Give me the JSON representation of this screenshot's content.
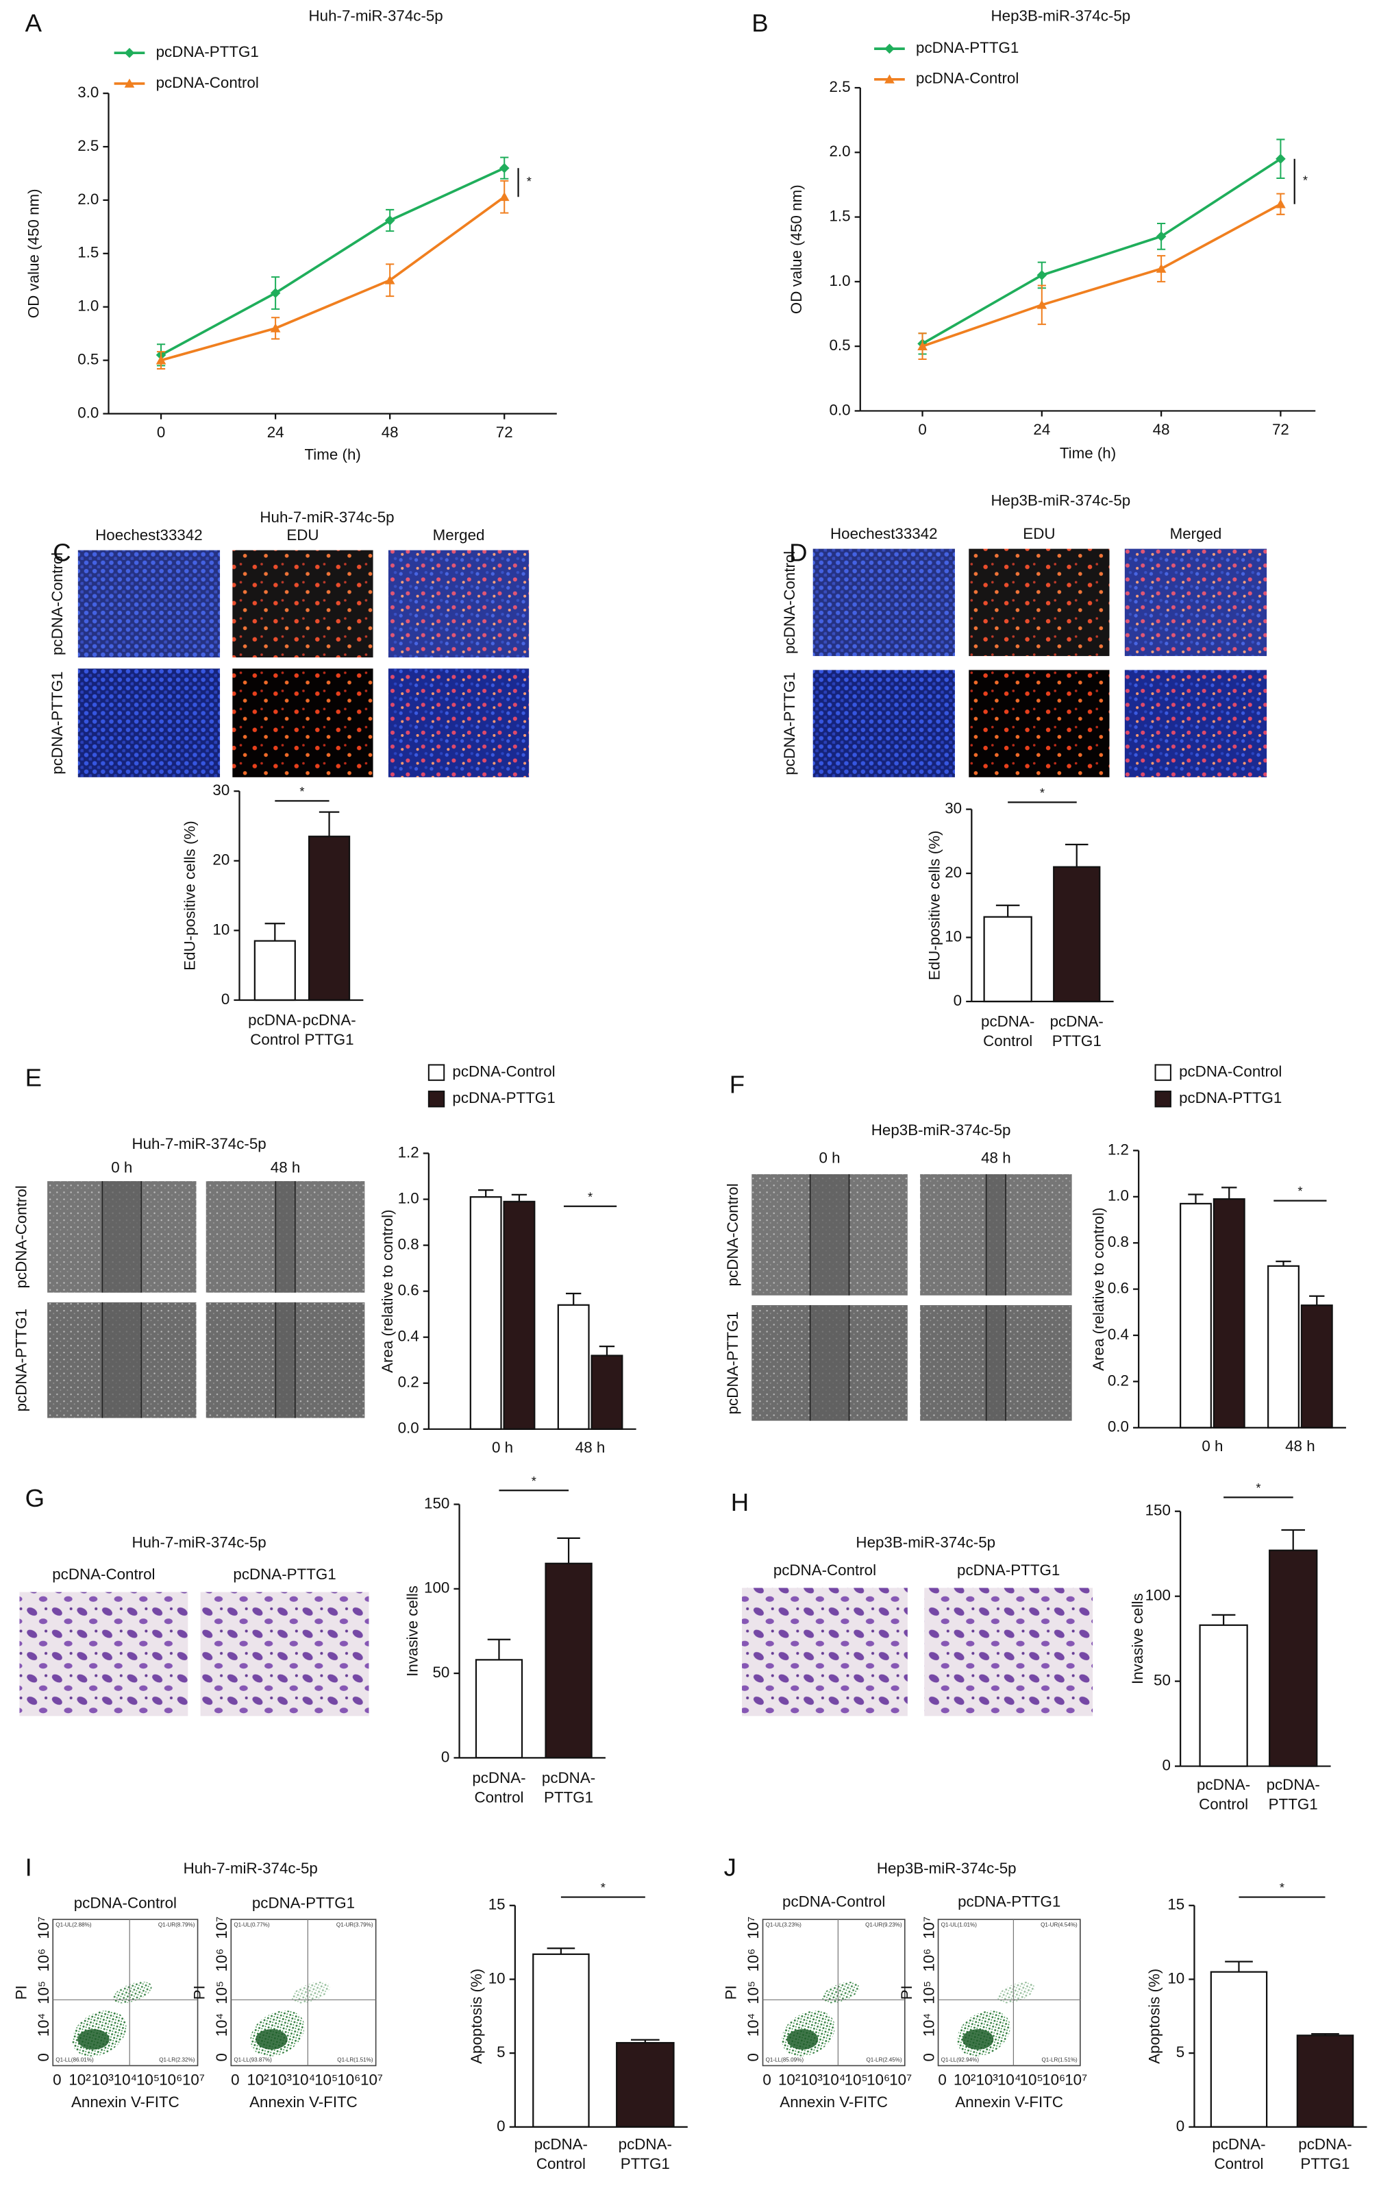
{
  "chart_data": [
    {
      "type": "line",
      "title": "Huh-7-miR-374c-5p",
      "x": [
        0,
        24,
        48,
        72
      ],
      "xlim": [
        -11,
        83
      ],
      "xticks": [
        0,
        24,
        48,
        72
      ],
      "xlabel": "Time (h)",
      "ylabel": "OD value (450 nm)",
      "ylim": [
        0,
        3
      ],
      "yticks": [
        {
          "value": 0,
          "label": "0.0"
        },
        0.5,
        {
          "value": 1,
          "label": "1.0"
        },
        1.5,
        {
          "value": 2,
          "label": "2.0"
        },
        2.5,
        {
          "value": 3,
          "label": "3.0"
        }
      ],
      "series": [
        {
          "name": "pcDNA-PTTG1",
          "color": "#1fae5b",
          "marker": "diamond",
          "values": [
            0.55,
            1.13,
            1.81,
            2.3
          ],
          "errors": [
            0.1,
            0.15,
            0.1,
            0.1
          ]
        },
        {
          "name": "pcDNA-Control",
          "color": "#f07f1f",
          "marker": "triangle",
          "values": [
            0.5,
            0.8,
            1.25,
            2.03
          ],
          "errors": [
            0.08,
            0.1,
            0.15,
            0.15
          ]
        }
      ],
      "annotations": [
        "*"
      ]
    },
    {
      "type": "line",
      "title": "Hep3B-miR-374c-5p",
      "x": [
        0,
        24,
        48,
        72
      ],
      "xlim": [
        -12.5,
        79
      ],
      "xticks": [
        0,
        24,
        48,
        72
      ],
      "xlabel": "Time (h)",
      "ylabel": "OD value (450 nm)",
      "ylim": [
        0,
        2.5
      ],
      "yticks": [
        {
          "value": 0,
          "label": "0.0"
        },
        0.5,
        {
          "value": 1,
          "label": "1.0"
        },
        1.5,
        {
          "value": 2,
          "label": "2.0"
        },
        2.5
      ],
      "series": [
        {
          "name": "pcDNA-PTTG1",
          "color": "#1fae5b",
          "marker": "diamond",
          "values": [
            0.52,
            1.05,
            1.35,
            1.95
          ],
          "errors": [
            0.08,
            0.1,
            0.1,
            0.15
          ]
        },
        {
          "name": "pcDNA-Control",
          "color": "#f07f1f",
          "marker": "triangle",
          "values": [
            0.5,
            0.82,
            1.1,
            1.6
          ],
          "errors": [
            0.1,
            0.15,
            0.1,
            0.08
          ]
        }
      ],
      "annotations": [
        "*"
      ]
    },
    {
      "type": "bar",
      "ylabel": "EdU-positive cells (%)",
      "categories": [
        "pcDNA-Control",
        "pcDNA-PTTG1"
      ],
      "values": [
        8.5,
        23.5
      ],
      "errors": [
        2.5,
        3.5
      ],
      "colors": [
        "#ffffff",
        "#2b1718"
      ],
      "ylim": [
        0,
        30
      ],
      "yticks": [
        0,
        10,
        20,
        30
      ],
      "annotations": [
        "*"
      ]
    },
    {
      "type": "bar",
      "ylabel": "EdU-positive cells (%)",
      "categories": [
        "pcDNA-Control",
        "pcDNA-PTTG1"
      ],
      "values": [
        13.2,
        21
      ],
      "errors": [
        1.8,
        3.5
      ],
      "colors": [
        "#ffffff",
        "#2b1718"
      ],
      "ylim": [
        0,
        30
      ],
      "yticks": [
        0,
        10,
        20,
        30
      ],
      "annotations": [
        "*"
      ]
    },
    {
      "type": "bar",
      "ylabel": "Area (relative to control)",
      "categories": [
        "0 h",
        "48 h"
      ],
      "series": [
        {
          "name": "pcDNA-Control",
          "color": "#ffffff",
          "values": [
            1.01,
            0.54
          ],
          "errors": [
            0.03,
            0.05
          ]
        },
        {
          "name": "pcDNA-PTTG1",
          "color": "#2b1718",
          "values": [
            0.99,
            0.32
          ],
          "errors": [
            0.03,
            0.04
          ]
        }
      ],
      "ylim": [
        0,
        1.2
      ],
      "yticks": [
        {
          "value": 0,
          "label": "0.0"
        },
        0.2,
        0.4,
        0.6,
        0.8,
        {
          "value": 1,
          "label": "1.0"
        },
        1.2
      ],
      "annotations": [
        "*"
      ]
    },
    {
      "type": "bar",
      "ylabel": "Area (relative to control)",
      "categories": [
        "0 h",
        "48 h"
      ],
      "series": [
        {
          "name": "pcDNA-Control",
          "color": "#ffffff",
          "values": [
            0.97,
            0.7
          ],
          "errors": [
            0.04,
            0.02
          ]
        },
        {
          "name": "pcDNA-PTTG1",
          "color": "#2b1718",
          "values": [
            0.99,
            0.53
          ],
          "errors": [
            0.05,
            0.04
          ]
        }
      ],
      "ylim": [
        0,
        1.2
      ],
      "yticks": [
        {
          "value": 0,
          "label": "0.0"
        },
        0.2,
        0.4,
        0.6,
        0.8,
        {
          "value": 1,
          "label": "1.0"
        },
        1.2
      ],
      "annotations": [
        "*"
      ]
    },
    {
      "type": "bar",
      "ylabel": "Invasive cells",
      "categories": [
        "pcDNA-Control",
        "pcDNA-PTTG1"
      ],
      "values": [
        58,
        115
      ],
      "errors": [
        12,
        15
      ],
      "colors": [
        "#ffffff",
        "#2b1718"
      ],
      "ylim": [
        0,
        150
      ],
      "yticks": [
        0,
        50,
        100,
        150
      ],
      "annotations": [
        "*"
      ]
    },
    {
      "type": "bar",
      "ylabel": "Invasive cells",
      "categories": [
        "pcDNA-Control",
        "pcDNA-PTTG1"
      ],
      "values": [
        83,
        127
      ],
      "errors": [
        6,
        12
      ],
      "colors": [
        "#ffffff",
        "#2b1718"
      ],
      "ylim": [
        0,
        150
      ],
      "yticks": [
        0,
        50,
        100,
        150
      ],
      "annotations": [
        "*"
      ]
    },
    {
      "type": "bar",
      "ylabel": "Apoptosis (%)",
      "categories": [
        "pcDNA-Control",
        "pcDNA-PTTG1"
      ],
      "values": [
        11.7,
        5.7
      ],
      "errors": [
        0.4,
        0.2
      ],
      "colors": [
        "#ffffff",
        "#2b1718"
      ],
      "ylim": [
        0,
        15
      ],
      "yticks": [
        0,
        5,
        10,
        15
      ],
      "annotations": [
        "*"
      ]
    },
    {
      "type": "bar",
      "ylabel": "Apoptosis (%)",
      "categories": [
        "pcDNA-Control",
        "pcDNA-PTTG1"
      ],
      "values": [
        10.5,
        6.2
      ],
      "errors": [
        0.7,
        0.1
      ],
      "colors": [
        "#ffffff",
        "#2b1718"
      ],
      "ylim": [
        0,
        15
      ],
      "yticks": [
        0,
        5,
        10,
        15
      ],
      "annotations": [
        "*"
      ]
    }
  ],
  "panels": [
    {
      "letter": "A"
    },
    {
      "letter": "B"
    },
    {
      "letter": "C",
      "title": "Huh-7-miR-374c-5p",
      "columns": [
        "Hoechest33342",
        "EDU",
        "Merged"
      ],
      "rows": [
        "pcDNA-Control",
        "pcDNA-PTTG1"
      ]
    },
    {
      "letter": "D",
      "title": "Hep3B-miR-374c-5p",
      "columns": [
        "Hoechest33342",
        "EDU",
        "Merged"
      ],
      "rows": [
        "pcDNA-Control",
        "pcDNA-PTTG1"
      ]
    },
    {
      "letter": "E",
      "title": "Huh-7-miR-374c-5p",
      "columns": [
        "0 h",
        "48 h"
      ],
      "rows": [
        "pcDNA-Control",
        "pcDNA-PTTG1"
      ]
    },
    {
      "letter": "F",
      "title": "Hep3B-miR-374c-5p",
      "columns": [
        "0 h",
        "48 h"
      ],
      "rows": [
        "pcDNA-Control",
        "pcDNA-PTTG1"
      ]
    },
    {
      "letter": "G",
      "title": "Huh-7-miR-374c-5p",
      "columns": [
        "pcDNA-Control",
        "pcDNA-PTTG1"
      ]
    },
    {
      "letter": "H",
      "title": "Hep3B-miR-374c-5p",
      "columns": [
        "pcDNA-Control",
        "pcDNA-PTTG1"
      ]
    },
    {
      "letter": "I",
      "title": "Huh-7-miR-374c-5p",
      "plots": [
        {
          "title": "pcDNA-Control",
          "quadrants": [
            "Q1-UL(2.88%)",
            "Q1-UR(8.79%)",
            "Q1-LL(86.01%)",
            "Q1-LR(2.32%)"
          ],
          "ylabel": "PI",
          "xlabel": "Annexin V-FITC",
          "xticks": [
            "0",
            "10²",
            "10³",
            "10⁴",
            "10⁵",
            "10⁶",
            "10⁷"
          ],
          "yticks": [
            "0",
            "10⁴",
            "10⁵",
            "10⁶",
            "10⁷"
          ]
        },
        {
          "title": "pcDNA-PTTG1",
          "quadrants": [
            "Q1-UL(0.77%)",
            "Q1-UR(3.79%)",
            "Q1-LL(93.87%)",
            "Q1-LR(1.51%)"
          ],
          "ylabel": "PI",
          "xlabel": "Annexin V-FITC",
          "xticks": [
            "0",
            "10²",
            "10³",
            "10⁴",
            "10⁵",
            "10⁶",
            "10⁷"
          ],
          "yticks": [
            "0",
            "10⁴",
            "10⁵",
            "10⁶",
            "10⁷"
          ]
        }
      ]
    },
    {
      "letter": "J",
      "title": "Hep3B-miR-374c-5p",
      "plots": [
        {
          "title": "pcDNA-Control",
          "quadrants": [
            "Q1-UL(3.23%)",
            "Q1-UR(9.23%)",
            "Q1-LL(85.09%)",
            "Q1-LR(2.45%)"
          ],
          "ylabel": "PI",
          "xlabel": "Annexin V-FITC",
          "xticks": [
            "0",
            "10²",
            "10³",
            "10⁴",
            "10⁵",
            "10⁶",
            "10⁷"
          ],
          "yticks": [
            "0",
            "10⁴",
            "10⁵",
            "10⁶",
            "10⁷"
          ]
        },
        {
          "title": "pcDNA-PTTG1",
          "quadrants": [
            "Q1-UL(1.01%)",
            "Q1-UR(4.54%)",
            "Q1-LL(92.94%)",
            "Q1-LR(1.51%)"
          ],
          "ylabel": "PI",
          "xlabel": "Annexin V-FITC",
          "xticks": [
            "0",
            "10²",
            "10³",
            "10⁴",
            "10⁵",
            "10⁶",
            "10⁷"
          ],
          "yticks": [
            "0",
            "10⁴",
            "10⁵",
            "10⁶",
            "10⁷"
          ]
        }
      ]
    }
  ]
}
